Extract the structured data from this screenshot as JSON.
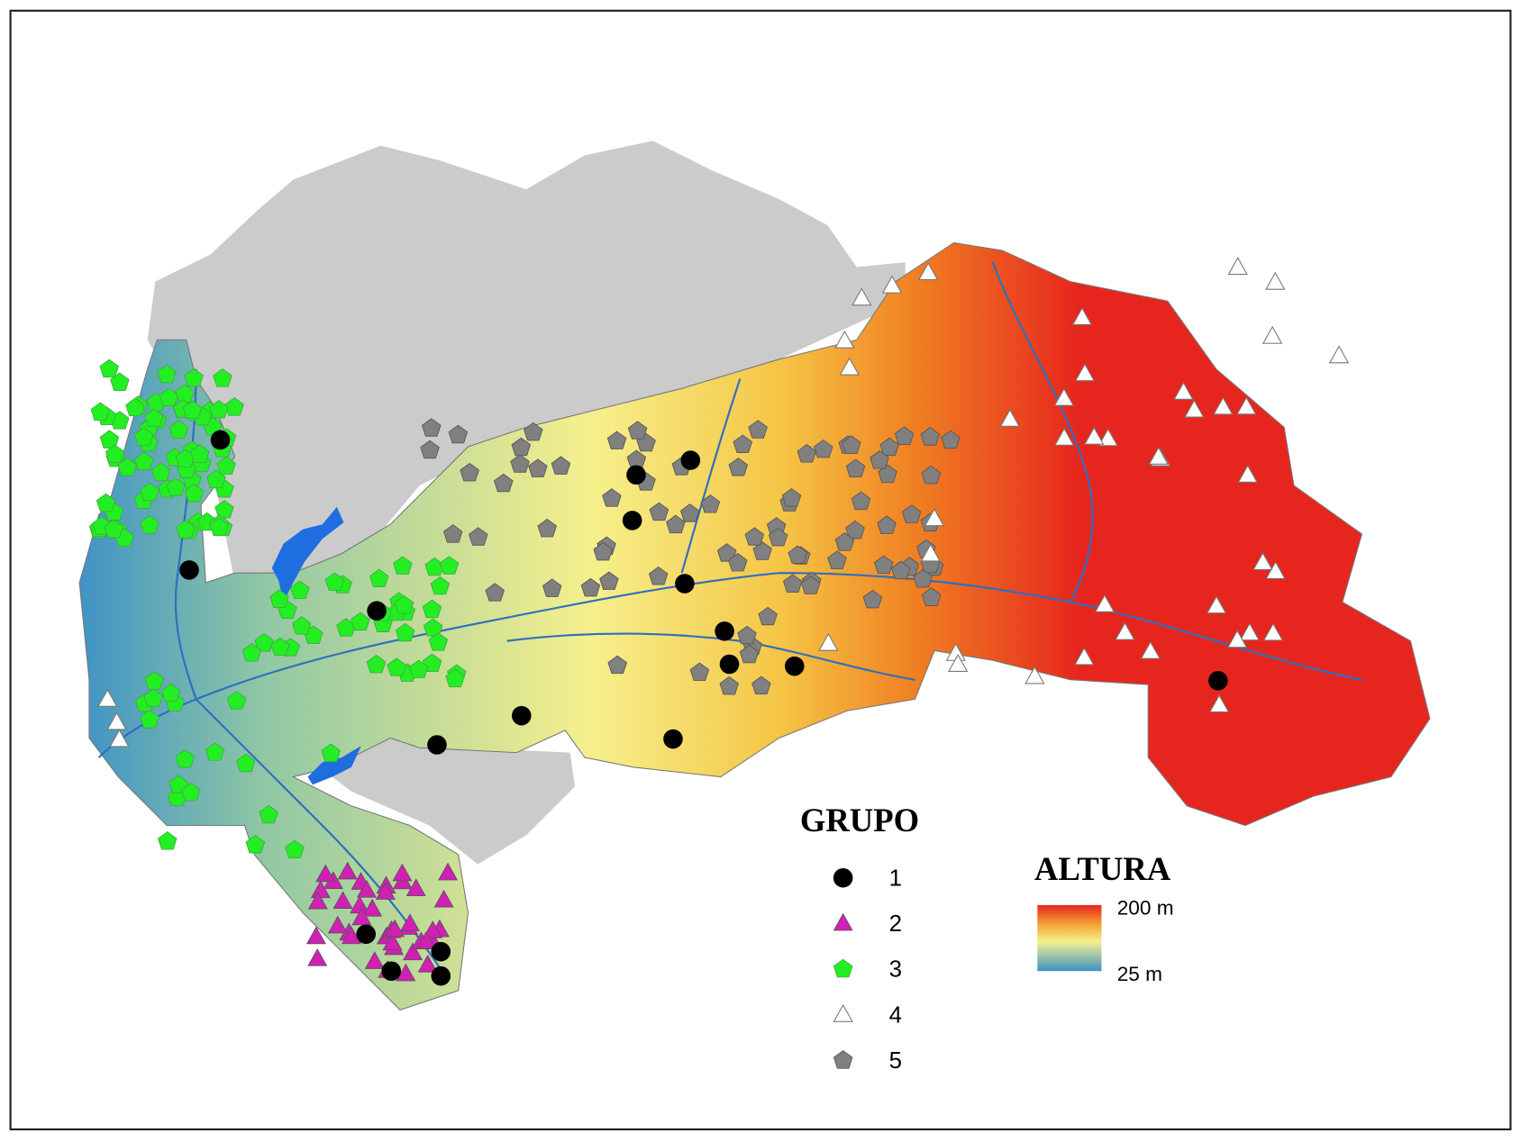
{
  "legend": {
    "title": "GRUPO",
    "items": [
      {
        "label": "1"
      },
      {
        "label": "2"
      },
      {
        "label": "3"
      },
      {
        "label": "4"
      },
      {
        "label": "5"
      }
    ]
  },
  "elevation_legend": {
    "title": "ALTURA",
    "max_label": "200 m",
    "min_label": "25 m"
  }
}
